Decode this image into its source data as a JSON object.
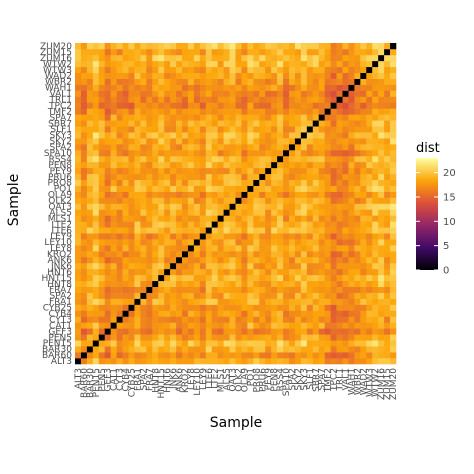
{
  "chart_data": {
    "type": "heatmap",
    "xlabel": "Sample",
    "ylabel": "Sample",
    "legend": {
      "title": "dist",
      "ticks": [
        0,
        5,
        10,
        15,
        20
      ],
      "range": [
        0,
        23
      ],
      "placement": "right",
      "colors": [
        "#000004",
        "#420a68",
        "#932667",
        "#dd513a",
        "#fca50a",
        "#fcffa4"
      ]
    },
    "samples": [
      "ALT3",
      "BAR60",
      "BAR30",
      "PEN15",
      "PEN5",
      "GEF3",
      "CAT1",
      "CYT3",
      "CYB4",
      "CYB25",
      "FRA1",
      "SPA2",
      "FRA7",
      "HNT8",
      "HNT15",
      "HNT6",
      "JNK6",
      "ANK6",
      "KRO2",
      "LEY8",
      "LEY10",
      "LEY9",
      "LTE6",
      "LTE2",
      "MLS1",
      "ALS5",
      "OAT3",
      "OLK2",
      "OLA9",
      "PO1",
      "PRO8",
      "PRU6",
      "PEY9",
      "PEN8",
      "RSS4",
      "SPA10",
      "SPA2",
      "SKY2",
      "SKY3",
      "SLF1",
      "SBR7",
      "SPA7",
      "TMF2",
      "TPC2",
      "TRL1",
      "VAL1",
      "WAH1",
      "WBR2",
      "WAD2",
      "WTW3",
      "WTW2",
      "ZUM16",
      "ZUM15",
      "ZUM20"
    ],
    "diagonal_value": 0,
    "row_mean_distance": [
      19,
      16,
      19,
      21,
      18,
      15,
      18,
      16,
      17,
      17,
      19,
      18,
      17,
      19,
      20,
      18,
      18,
      17,
      17,
      19,
      18,
      17,
      20,
      19,
      18,
      19,
      20,
      18,
      17,
      20,
      19,
      18,
      17,
      19,
      20,
      17,
      18,
      19,
      20,
      18,
      19,
      18,
      16,
      14,
      15,
      15,
      16,
      17,
      18,
      19,
      20,
      21,
      19,
      21
    ]
  }
}
